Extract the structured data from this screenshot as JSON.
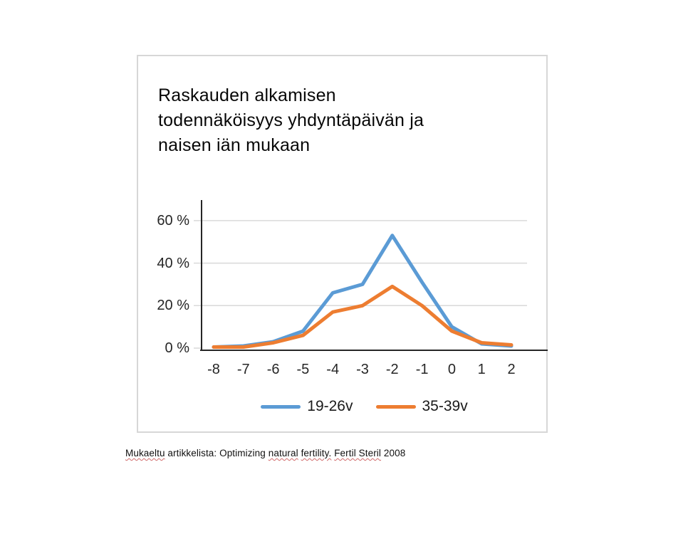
{
  "page": {
    "background": "#ffffff"
  },
  "slide": {
    "title_lines": [
      "Raskauden alkamisen",
      "todennäköisyys yhdyntäpäivän ja",
      "naisen iän mukaan"
    ]
  },
  "chart_data": {
    "type": "line",
    "title": "Raskauden alkamisen todennäköisyys yhdyntäpäivän ja naisen iän mukaan",
    "categories": [
      -8,
      -7,
      -6,
      -5,
      -4,
      -3,
      -2,
      -1,
      0,
      1,
      2
    ],
    "series": [
      {
        "name": "19-26v",
        "color": "#5B9BD5",
        "values": [
          0.5,
          1,
          3,
          8,
          26,
          30,
          53,
          31,
          10,
          2,
          1
        ]
      },
      {
        "name": "35-39v",
        "color": "#ED7D31",
        "values": [
          0.5,
          0.5,
          2.5,
          6,
          17,
          20,
          29,
          20,
          8,
          2.5,
          1.5
        ]
      }
    ],
    "xlabel": "",
    "ylabel": "",
    "y_ticks": [
      {
        "value": 0,
        "label": "0 %"
      },
      {
        "value": 20,
        "label": "20 %"
      },
      {
        "value": 40,
        "label": "40 %"
      },
      {
        "value": 60,
        "label": "60 %"
      }
    ],
    "ylim": [
      0,
      70
    ],
    "grid": true,
    "legend_position": "bottom",
    "colors": {
      "gridline": "#d9d9d9",
      "axis": "#262626",
      "tick_label": "#262626"
    }
  },
  "footer": {
    "segments": [
      {
        "text": "Mukaeltu",
        "misspelled": true
      },
      {
        "text": " artikkelista: Optimizing ",
        "misspelled": false
      },
      {
        "text": "natural",
        "misspelled": true
      },
      {
        "text": " ",
        "misspelled": false
      },
      {
        "text": "fertility.",
        "misspelled": true
      },
      {
        "text": " ",
        "misspelled": false
      },
      {
        "text": "Fertil Steril",
        "misspelled": true
      },
      {
        "text": " 2008",
        "misspelled": false
      }
    ]
  }
}
